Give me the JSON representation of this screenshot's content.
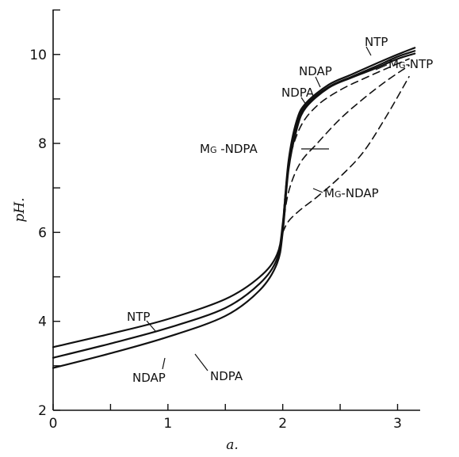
{
  "chart_data": {
    "type": "line",
    "title": "",
    "xlabel": "a.",
    "ylabel": "pH.",
    "xlim": [
      0,
      3.3
    ],
    "ylim": [
      2,
      11
    ],
    "x_ticks": [
      0,
      0.5,
      1,
      1.5,
      2,
      2.5,
      3
    ],
    "x_tick_labels": [
      "0",
      "",
      "1",
      "",
      "2",
      "",
      "3"
    ],
    "y_ticks": [
      2,
      3,
      4,
      5,
      6,
      7,
      8,
      9,
      10,
      11
    ],
    "y_tick_labels": [
      "2",
      "",
      "4",
      "",
      "6",
      "",
      "8",
      "",
      "10",
      ""
    ],
    "grid": false,
    "series": [
      {
        "name": "NTP",
        "style": "solid",
        "x": [
          0,
          0.5,
          1,
          1.5,
          1.8,
          1.95,
          2.0,
          2.05,
          2.12,
          2.2,
          2.4,
          2.6,
          2.8,
          3.0,
          3.15
        ],
        "y": [
          3.42,
          3.72,
          4.05,
          4.5,
          5.0,
          5.5,
          6.2,
          7.6,
          8.5,
          8.9,
          9.32,
          9.55,
          9.78,
          10.0,
          10.15
        ]
      },
      {
        "name": "NDPA",
        "style": "solid",
        "x": [
          0,
          0.5,
          1,
          1.5,
          1.8,
          1.95,
          2.0,
          2.05,
          2.12,
          2.2,
          2.4,
          2.6,
          2.8,
          3.0,
          3.15
        ],
        "y": [
          3.18,
          3.5,
          3.85,
          4.3,
          4.85,
          5.4,
          6.1,
          7.5,
          8.4,
          8.85,
          9.27,
          9.5,
          9.72,
          9.95,
          10.08
        ]
      },
      {
        "name": "NDAP",
        "style": "solid",
        "x": [
          0,
          0.5,
          1,
          1.5,
          1.8,
          1.95,
          2.0,
          2.05,
          2.12,
          2.2,
          2.4,
          2.6,
          2.8,
          3.0,
          3.15
        ],
        "y": [
          2.95,
          3.28,
          3.65,
          4.12,
          4.7,
          5.3,
          6.0,
          7.4,
          8.3,
          8.8,
          9.25,
          9.48,
          9.68,
          9.9,
          10.02
        ]
      },
      {
        "name": "Mg-NTP",
        "style": "dashed",
        "x": [
          2.0,
          2.05,
          2.15,
          2.3,
          2.5,
          2.7,
          2.9,
          3.1
        ],
        "y": [
          6.2,
          7.5,
          8.35,
          8.85,
          9.2,
          9.45,
          9.68,
          9.9
        ]
      },
      {
        "name": "Mg-NDPA",
        "style": "dashed",
        "x": [
          2.0,
          2.05,
          2.15,
          2.3,
          2.5,
          2.7,
          2.9,
          3.1
        ],
        "y": [
          6.1,
          6.9,
          7.55,
          8.0,
          8.55,
          9.0,
          9.4,
          9.75
        ]
      },
      {
        "name": "Mg-NDAP",
        "style": "dashed",
        "x": [
          2.0,
          2.05,
          2.15,
          2.3,
          2.5,
          2.7,
          2.9,
          3.1
        ],
        "y": [
          6.0,
          6.25,
          6.5,
          6.8,
          7.25,
          7.8,
          8.6,
          9.5
        ]
      }
    ]
  },
  "labels": {
    "NTP": [
      "NTP",
      "NTP"
    ],
    "NDAP": [
      "NDAP",
      "NDAP"
    ],
    "NDPA": [
      "NDPA",
      "NDPA"
    ],
    "Mg-NTP": [
      "M",
      "G",
      "-NTP"
    ],
    "Mg-NDPA": [
      "M",
      "G",
      " -NDPA"
    ],
    "Mg-NDAP": [
      "M",
      "G",
      "-NDAP"
    ]
  }
}
